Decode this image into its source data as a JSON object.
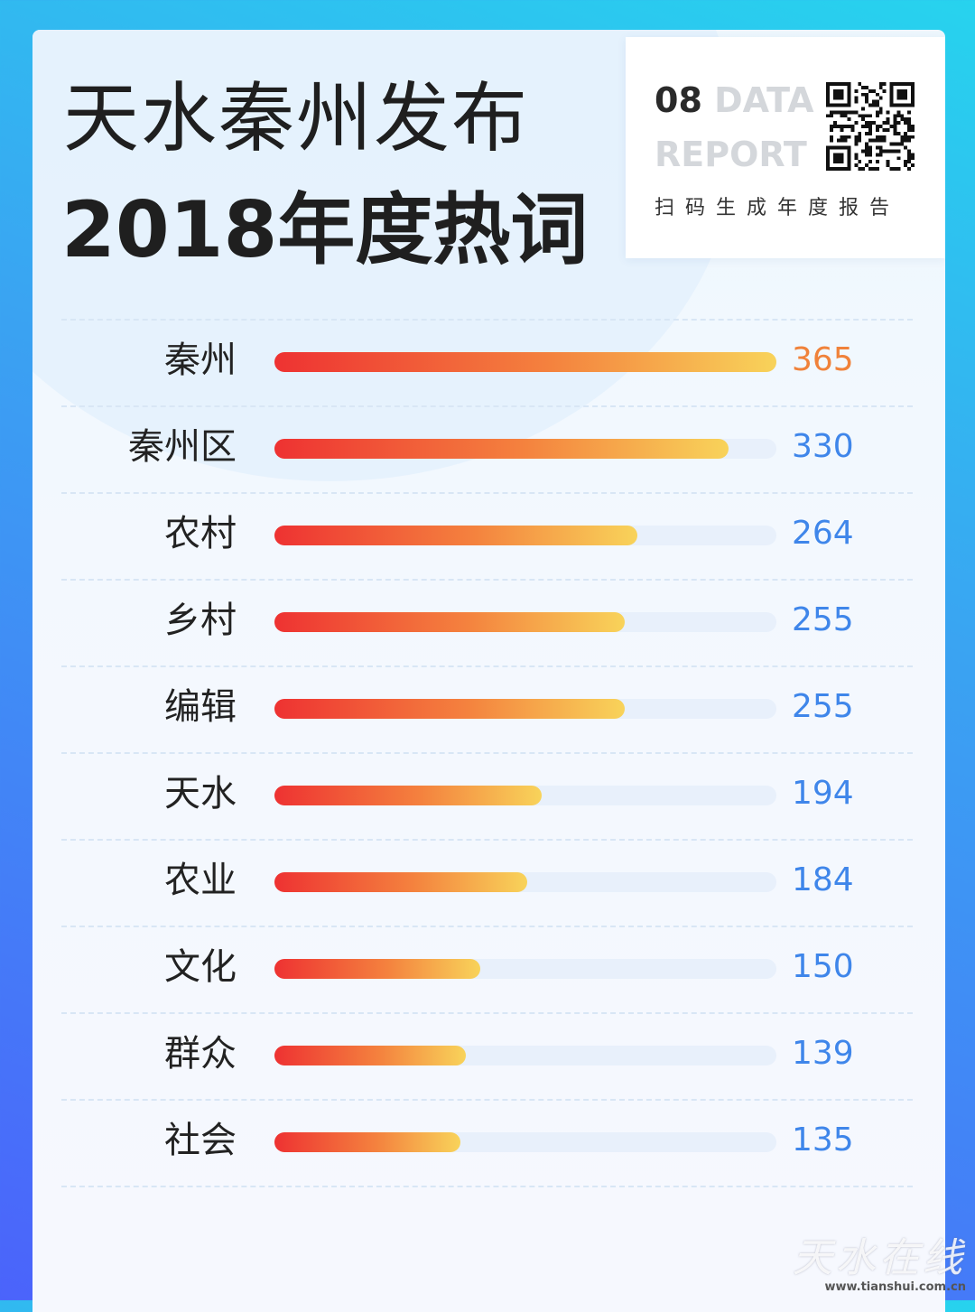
{
  "header": {
    "title_line1": "天水秦州发布",
    "title_line2": "2018年度热词"
  },
  "badge": {
    "number": "08",
    "data_word": "DATA",
    "report_word": "REPORT",
    "caption": "扫码生成年度报告"
  },
  "watermark": {
    "logo_text": "天水在线",
    "url": "www.tianshui.com.cn"
  },
  "colors": {
    "top_value": "#f0823a",
    "other_values": "#3f86ea",
    "bar_start": "#ee3232",
    "bar_end": "#f8d35a"
  },
  "chart_data": {
    "type": "bar",
    "orientation": "horizontal",
    "categories": [
      "秦州",
      "秦州区",
      "农村",
      "乡村",
      "编辑",
      "天水",
      "农业",
      "文化",
      "群众",
      "社会"
    ],
    "values": [
      365,
      330,
      264,
      255,
      255,
      194,
      184,
      150,
      139,
      135
    ],
    "xlim": [
      0,
      365
    ]
  }
}
